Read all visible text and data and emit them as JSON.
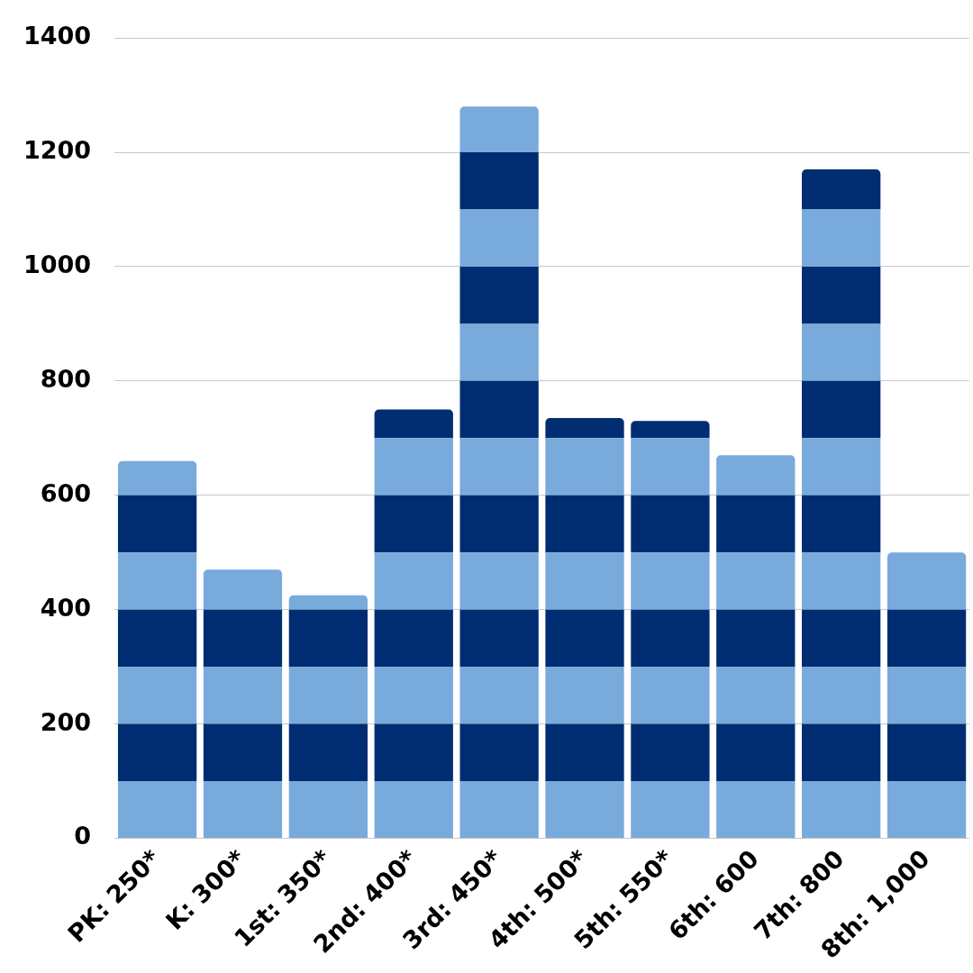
{
  "chart_data": {
    "type": "bar",
    "categories": [
      "PK: 250*",
      "K: 300*",
      "1st: 350*",
      "2nd: 400*",
      "3rd: 450*",
      "4th: 500*",
      "5th: 550*",
      "6th: 600",
      "7th: 800",
      "8th: 1,000"
    ],
    "stacked": true,
    "series": [
      {
        "color": "#79aadc",
        "values": [
          100,
          100,
          100,
          100,
          100,
          100,
          100,
          100,
          100,
          100
        ]
      },
      {
        "color": "#002d72",
        "values": [
          100,
          100,
          100,
          100,
          100,
          100,
          100,
          100,
          100,
          100
        ]
      },
      {
        "color": "#79aadc",
        "values": [
          100,
          100,
          100,
          100,
          100,
          100,
          100,
          100,
          100,
          100
        ]
      },
      {
        "color": "#002d72",
        "values": [
          100,
          100,
          100,
          100,
          100,
          100,
          100,
          100,
          100,
          100
        ]
      },
      {
        "color": "#79aadc",
        "values": [
          100,
          70,
          25,
          100,
          100,
          100,
          100,
          100,
          100,
          100
        ]
      },
      {
        "color": "#002d72",
        "values": [
          100,
          null,
          null,
          100,
          100,
          100,
          100,
          100,
          100,
          null
        ]
      },
      {
        "color": "#79aadc",
        "values": [
          60,
          null,
          null,
          100,
          100,
          100,
          100,
          70,
          100,
          null
        ]
      },
      {
        "color": "#002d72",
        "values": [
          null,
          null,
          null,
          50,
          100,
          35,
          30,
          null,
          100,
          null
        ]
      },
      {
        "color": "#79aadc",
        "values": [
          null,
          null,
          null,
          null,
          100,
          null,
          null,
          null,
          100,
          null
        ]
      },
      {
        "color": "#002d72",
        "values": [
          null,
          null,
          null,
          null,
          100,
          null,
          null,
          null,
          100,
          null
        ]
      },
      {
        "color": "#79aadc",
        "values": [
          null,
          null,
          null,
          null,
          100,
          null,
          null,
          null,
          100,
          null
        ]
      },
      {
        "color": "#002d72",
        "values": [
          null,
          null,
          null,
          null,
          100,
          null,
          null,
          null,
          70,
          null
        ]
      },
      {
        "color": "#79aadc",
        "values": [
          null,
          null,
          null,
          null,
          80,
          null,
          null,
          null,
          null,
          null
        ]
      }
    ],
    "ylim": [
      0,
      1400
    ],
    "yticks": [
      0,
      200,
      400,
      600,
      800,
      1000,
      1200,
      1400
    ],
    "grid": "y"
  }
}
